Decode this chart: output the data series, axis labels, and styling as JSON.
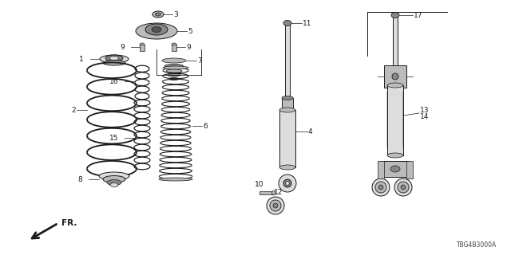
{
  "background_color": "#ffffff",
  "line_color": "#1a1a1a",
  "diagram_code": "TBG4B3000A",
  "fr_arrow_text": "FR.",
  "figsize": [
    6.4,
    3.2
  ],
  "dpi": 100,
  "border_color": "#aaaaaa",
  "gray_dark": "#555555",
  "gray_mid": "#888888",
  "gray_light": "#bbbbbb",
  "gray_vlight": "#dddddd"
}
